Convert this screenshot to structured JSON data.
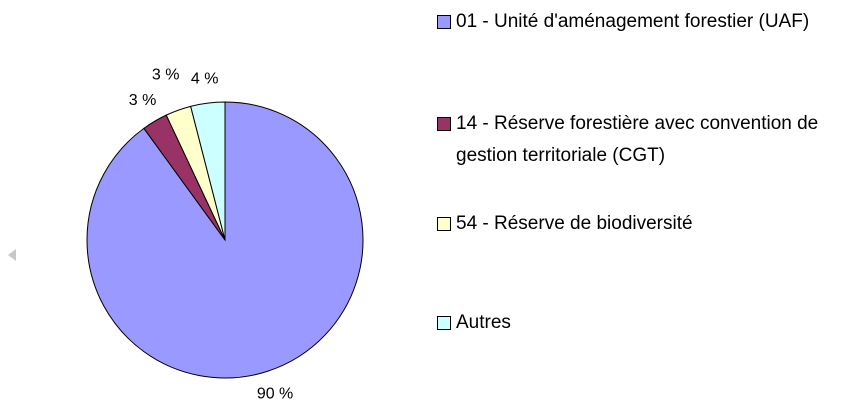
{
  "chart_data": {
    "type": "pie",
    "categories": [
      "01 - Unité d'aménagement forestier (UAF)",
      "14 - Réserve forestière avec convention de gestion territoriale (CGT)",
      "54 - Réserve de biodiversité",
      "Autres"
    ],
    "values": [
      90,
      3,
      3,
      4
    ],
    "value_labels": [
      "90 %",
      "3 %",
      "3 %",
      "4 %"
    ],
    "colors": [
      "#9999ff",
      "#993366",
      "#ffffcc",
      "#ccffff"
    ],
    "legend": "right"
  }
}
